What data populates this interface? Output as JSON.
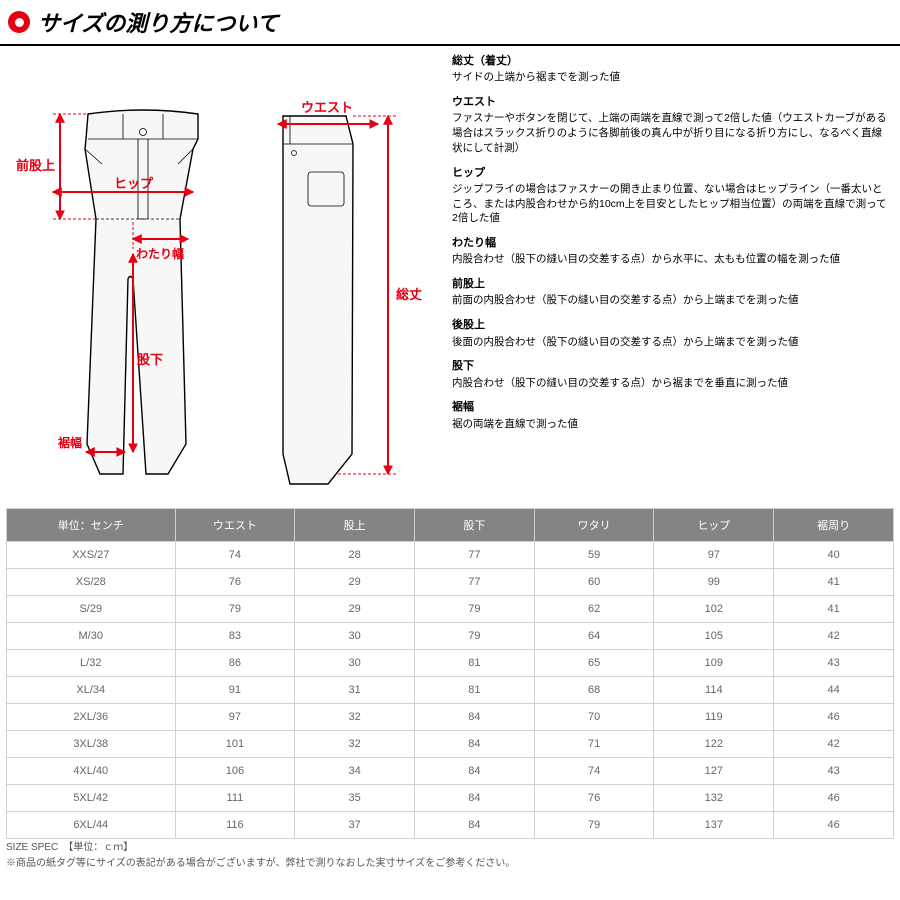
{
  "header": {
    "title": "サイズの測り方について"
  },
  "diagram": {
    "labels": {
      "waist": "ウエスト",
      "hip": "ヒップ",
      "front_rise": "前股上",
      "thigh_width": "わたり幅",
      "inseam": "股下",
      "hem_width": "裾幅",
      "total_length": "総丈"
    },
    "colors": {
      "arrow": "#e60012",
      "line": "#000000",
      "fill": "#f7f7f7"
    }
  },
  "definitions": [
    {
      "title": "総丈（着丈）",
      "text": "サイドの上端から裾までを測った値"
    },
    {
      "title": "ウエスト",
      "text": "ファスナーやボタンを閉じて、上端の両端を直線で測って2倍した値（ウエストカーブがある場合はスラックス折りのように各脚前後の真ん中が折り目になる折り方にし、なるべく直線状にして計測）"
    },
    {
      "title": "ヒップ",
      "text": "ジップフライの場合はファスナーの開き止まり位置、ない場合はヒップライン（一番太いところ、または内股合わせから約10cm上を目安としたヒップ相当位置）の両端を直線で測って2倍した値"
    },
    {
      "title": "わたり幅",
      "text": "内股合わせ（股下の縫い目の交差する点）から水平に、太もも位置の幅を測った値"
    },
    {
      "title": "前股上",
      "text": "前面の内股合わせ（股下の縫い目の交差する点）から上端までを測った値"
    },
    {
      "title": "後股上",
      "text": "後面の内股合わせ（股下の縫い目の交差する点）から上端までを測った値"
    },
    {
      "title": "股下",
      "text": "内股合わせ（股下の縫い目の交差する点）から裾までを垂直に測った値"
    },
    {
      "title": "裾幅",
      "text": "裾の両端を直線で測った値"
    }
  ],
  "table": {
    "unit_header": "単位：センチ",
    "columns": [
      "ウエスト",
      "股上",
      "股下",
      "ワタリ",
      "ヒップ",
      "裾周り"
    ],
    "rows": [
      {
        "size": "XXS/27",
        "v": [
          "74",
          "28",
          "77",
          "59",
          "97",
          "40"
        ]
      },
      {
        "size": "XS/28",
        "v": [
          "76",
          "29",
          "77",
          "60",
          "99",
          "41"
        ]
      },
      {
        "size": "S/29",
        "v": [
          "79",
          "29",
          "79",
          "62",
          "102",
          "41"
        ]
      },
      {
        "size": "M/30",
        "v": [
          "83",
          "30",
          "79",
          "64",
          "105",
          "42"
        ]
      },
      {
        "size": "L/32",
        "v": [
          "86",
          "30",
          "81",
          "65",
          "109",
          "43"
        ]
      },
      {
        "size": "XL/34",
        "v": [
          "91",
          "31",
          "81",
          "68",
          "114",
          "44"
        ]
      },
      {
        "size": "2XL/36",
        "v": [
          "97",
          "32",
          "84",
          "70",
          "119",
          "46"
        ]
      },
      {
        "size": "3XL/38",
        "v": [
          "101",
          "32",
          "84",
          "71",
          "122",
          "42"
        ]
      },
      {
        "size": "4XL/40",
        "v": [
          "106",
          "34",
          "84",
          "74",
          "127",
          "43"
        ]
      },
      {
        "size": "5XL/42",
        "v": [
          "111",
          "35",
          "84",
          "76",
          "132",
          "46"
        ]
      },
      {
        "size": "6XL/44",
        "v": [
          "116",
          "37",
          "84",
          "79",
          "137",
          "46"
        ]
      }
    ]
  },
  "footnotes": [
    "SIZE SPEC　【単位：ｃｍ】",
    "※商品の紙タグ等にサイズの表記がある場合がございますが、弊社で測りなおした実寸サイズをご参考ください。"
  ]
}
